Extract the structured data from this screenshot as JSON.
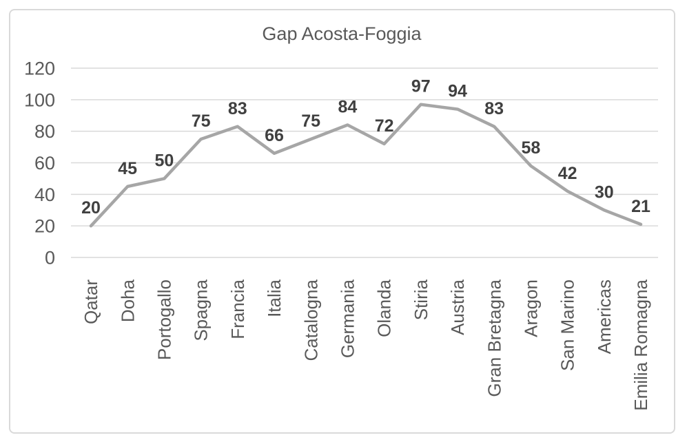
{
  "chart_data": {
    "type": "line",
    "title": "Gap Acosta-Foggia",
    "categories": [
      "Qatar",
      "Doha",
      "Portogallo",
      "Spagna",
      "Francia",
      "Italia",
      "Catalogna",
      "Germania",
      "Olanda",
      "Stiria",
      "Austria",
      "Gran Bretagna",
      "Aragon",
      "San Marino",
      "Americas",
      "Emilia Romagna"
    ],
    "values": [
      20,
      45,
      50,
      75,
      83,
      66,
      75,
      84,
      72,
      97,
      94,
      83,
      58,
      42,
      30,
      21
    ],
    "series_name": "Gap Acosta-Foggia",
    "xlabel": "",
    "ylabel": "",
    "y_ticks": [
      0,
      20,
      40,
      60,
      80,
      100,
      120
    ],
    "ylim": [
      0,
      120
    ],
    "grid": true,
    "legend": "none",
    "data_labels": true,
    "colors": {
      "line": "#a6a6a6",
      "gridline": "#d9d9d9",
      "axis_text": "#595959",
      "data_label": "#404040",
      "title": "#595959",
      "frame_border": "#d9d9d9",
      "background": "#ffffff"
    }
  }
}
